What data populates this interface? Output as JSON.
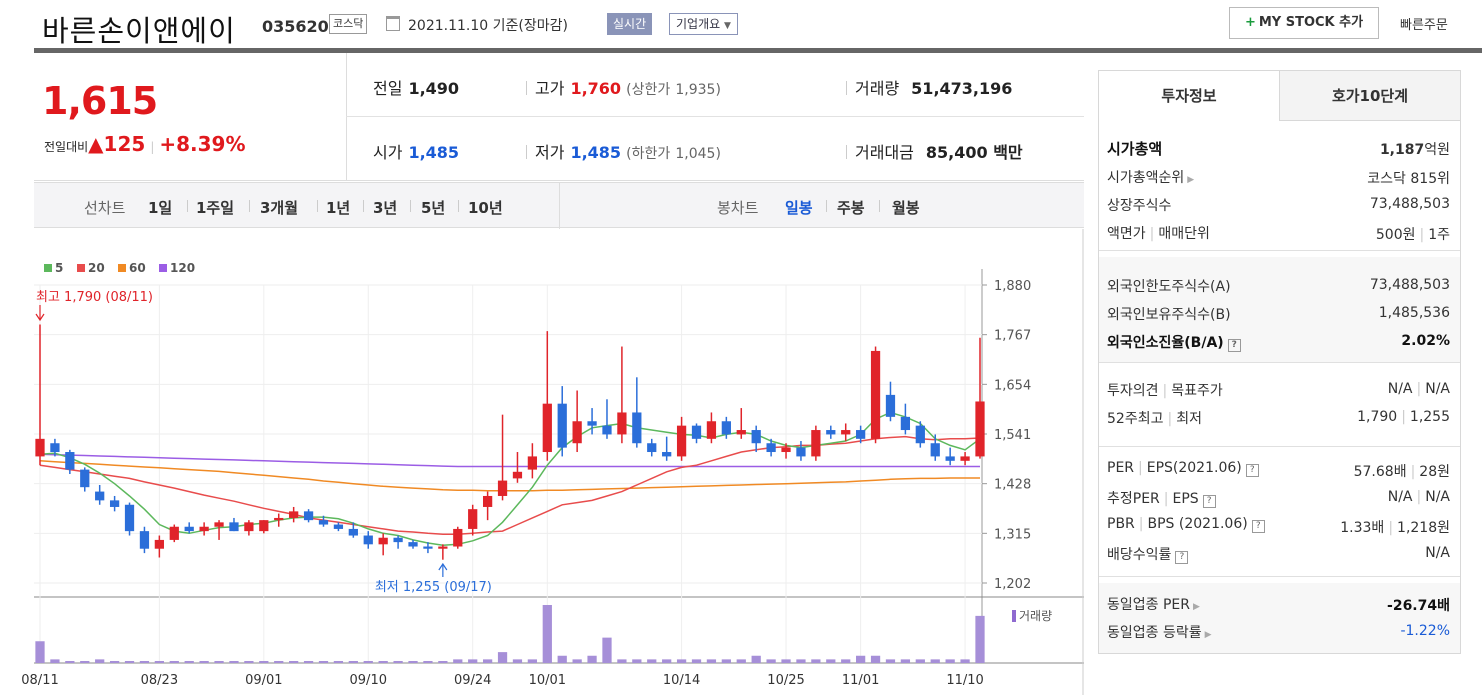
{
  "header": {
    "name": "바른손이앤에이",
    "code": "035620",
    "market": "코스닥",
    "date": "2021.11.10 기준(장마감)",
    "realtime": "실시간",
    "corp_info": "기업개요",
    "my_stock": "MY STOCK 추가",
    "quick_order": "빠른주문"
  },
  "price": {
    "current": "1,615",
    "change_label": "전일대비",
    "change_value": "▲125",
    "change_pct": "+8.39%",
    "prev_label": "전일",
    "prev": "1,490",
    "high_label": "고가",
    "high": "1,760",
    "upper_label": "(상한가",
    "upper": "1,935)",
    "volume_label": "거래량",
    "volume": "51,473,196",
    "open_label": "시가",
    "open": "1,485",
    "low_label": "저가",
    "low": "1,485",
    "lower_label": "(하한가",
    "lower": "1,045)",
    "amount_label": "거래대금",
    "amount": "85,400 백만"
  },
  "tabs": {
    "line_label": "선차트",
    "periods": [
      "1일",
      "1주일",
      "3개월",
      "1년",
      "3년",
      "5년",
      "10년"
    ],
    "candle_label": "봉차트",
    "candles": [
      "일봉",
      "주봉",
      "월봉"
    ]
  },
  "side": {
    "tab_info": "투자정보",
    "tab_hoga": "호가10단계",
    "market_cap_label": "시가총액",
    "market_cap_num": "1,187",
    "market_cap_unit": "억원",
    "rank_label": "시가총액순위",
    "rank": "코스닥 815위",
    "shares_label": "상장주식수",
    "shares": "73,488,503",
    "par_label": "액면가",
    "unit_label": "매매단위",
    "par": "500원",
    "unit": "1주",
    "foreign_limit_label": "외국인한도주식수(A)",
    "foreign_limit": "73,488,503",
    "foreign_hold_label": "외국인보유주식수(B)",
    "foreign_hold": "1,485,536",
    "foreign_ratio_label": "외국인소진율(B/A)",
    "foreign_ratio": "2.02%",
    "opinion_label": "투자의견",
    "target_label": "목표주가",
    "opinion": "N/A",
    "target": "N/A",
    "w52_high_label": "52주최고",
    "w52_low_label": "최저",
    "w52_high": "1,790",
    "w52_low": "1,255",
    "per_label": "PER",
    "eps_label": "EPS(2021.06)",
    "per": "57.68배",
    "eps": "28원",
    "eper_label": "추정PER",
    "eeps_label": "EPS",
    "eper": "N/A",
    "eeps": "N/A",
    "pbr_label": "PBR",
    "bps_label": "BPS (2021.06)",
    "pbr": "1.33배",
    "bps": "1,218원",
    "div_label": "배당수익률",
    "div": "N/A",
    "sector_per_label": "동일업종 PER",
    "sector_per": "-26.74배",
    "sector_chg_label": "동일업종 등락률",
    "sector_chg": "-1.22%"
  },
  "chart_data": {
    "type": "candlestick",
    "legend": [
      "5",
      "20",
      "60",
      "120"
    ],
    "legend_colors": [
      "#5cb85c",
      "#e84c4c",
      "#f08a24",
      "#9b5de5"
    ],
    "y_ticks": [
      "1,880",
      "1,767",
      "1,654",
      "1,541",
      "1,428",
      "1,315",
      "1,202"
    ],
    "y_min": 1202,
    "y_max": 1880,
    "x_labels": [
      "08/11",
      "08/23",
      "09/01",
      "09/10",
      "09/24",
      "10/01",
      "10/14",
      "10/25",
      "11/01",
      "11/10"
    ],
    "x_label_index": [
      0,
      8,
      15,
      22,
      29,
      34,
      43,
      50,
      55,
      62
    ],
    "high_annotation": "최고 1,790 (08/11)",
    "low_annotation": "최저 1,255 (09/17)",
    "volume_label": "거래량",
    "candles": [
      [
        1490,
        1790,
        1470,
        1530
      ],
      [
        1520,
        1530,
        1490,
        1500
      ],
      [
        1500,
        1505,
        1450,
        1460
      ],
      [
        1460,
        1465,
        1410,
        1420
      ],
      [
        1410,
        1425,
        1380,
        1390
      ],
      [
        1390,
        1400,
        1365,
        1375
      ],
      [
        1380,
        1385,
        1310,
        1320
      ],
      [
        1320,
        1330,
        1270,
        1280
      ],
      [
        1280,
        1310,
        1260,
        1300
      ],
      [
        1300,
        1335,
        1295,
        1330
      ],
      [
        1330,
        1340,
        1315,
        1320
      ],
      [
        1320,
        1340,
        1310,
        1330
      ],
      [
        1330,
        1345,
        1300,
        1340
      ],
      [
        1340,
        1350,
        1320,
        1320
      ],
      [
        1320,
        1345,
        1310,
        1340
      ],
      [
        1320,
        1345,
        1315,
        1345
      ],
      [
        1345,
        1360,
        1330,
        1350
      ],
      [
        1350,
        1375,
        1340,
        1365
      ],
      [
        1365,
        1370,
        1340,
        1345
      ],
      [
        1345,
        1355,
        1330,
        1335
      ],
      [
        1335,
        1340,
        1320,
        1325
      ],
      [
        1325,
        1340,
        1305,
        1310
      ],
      [
        1310,
        1320,
        1280,
        1290
      ],
      [
        1290,
        1315,
        1265,
        1305
      ],
      [
        1305,
        1310,
        1280,
        1295
      ],
      [
        1295,
        1300,
        1280,
        1285
      ],
      [
        1285,
        1295,
        1270,
        1280
      ],
      [
        1280,
        1290,
        1255,
        1285
      ],
      [
        1285,
        1330,
        1280,
        1325
      ],
      [
        1325,
        1380,
        1310,
        1370
      ],
      [
        1375,
        1410,
        1345,
        1400
      ],
      [
        1400,
        1585,
        1390,
        1435
      ],
      [
        1440,
        1500,
        1430,
        1455
      ],
      [
        1460,
        1520,
        1440,
        1490
      ],
      [
        1500,
        1775,
        1480,
        1610
      ],
      [
        1610,
        1650,
        1490,
        1510
      ],
      [
        1520,
        1640,
        1500,
        1570
      ],
      [
        1570,
        1600,
        1540,
        1560
      ],
      [
        1560,
        1620,
        1530,
        1540
      ],
      [
        1540,
        1740,
        1520,
        1590
      ],
      [
        1590,
        1670,
        1510,
        1520
      ],
      [
        1520,
        1530,
        1490,
        1500
      ],
      [
        1500,
        1535,
        1480,
        1490
      ],
      [
        1490,
        1580,
        1480,
        1560
      ],
      [
        1560,
        1565,
        1520,
        1530
      ],
      [
        1530,
        1590,
        1520,
        1570
      ],
      [
        1570,
        1580,
        1530,
        1540
      ],
      [
        1540,
        1600,
        1530,
        1550
      ],
      [
        1550,
        1560,
        1500,
        1520
      ],
      [
        1520,
        1530,
        1490,
        1500
      ],
      [
        1500,
        1520,
        1485,
        1510
      ],
      [
        1510,
        1525,
        1480,
        1490
      ],
      [
        1490,
        1560,
        1480,
        1550
      ],
      [
        1550,
        1560,
        1530,
        1540
      ],
      [
        1540,
        1565,
        1525,
        1550
      ],
      [
        1550,
        1560,
        1520,
        1530
      ],
      [
        1530,
        1740,
        1520,
        1730
      ],
      [
        1630,
        1660,
        1570,
        1580
      ],
      [
        1580,
        1610,
        1540,
        1550
      ],
      [
        1560,
        1570,
        1510,
        1520
      ],
      [
        1520,
        1540,
        1480,
        1490
      ],
      [
        1490,
        1510,
        1470,
        1480
      ],
      [
        1480,
        1500,
        1470,
        1490
      ],
      [
        1490,
        1760,
        1485,
        1615
      ]
    ],
    "volume": [
      6,
      1,
      0,
      0,
      1,
      0,
      0,
      0,
      0,
      0,
      0,
      0,
      0,
      0,
      0,
      0,
      0,
      0,
      0,
      0,
      0,
      0,
      0,
      0,
      0,
      0,
      0,
      0,
      1,
      1,
      1,
      3,
      1,
      1,
      16,
      2,
      1,
      2,
      7,
      1,
      1,
      1,
      1,
      1,
      1,
      1,
      1,
      1,
      2,
      1,
      1,
      1,
      1,
      1,
      1,
      2,
      2,
      1,
      1,
      1,
      1,
      1,
      1,
      13
    ],
    "ma5": [
      1495,
      1497,
      1487,
      1472,
      1452,
      1428,
      1400,
      1370,
      1335,
      1320,
      1315,
      1322,
      1328,
      1330,
      1335,
      1338,
      1345,
      1350,
      1352,
      1352,
      1348,
      1338,
      1325,
      1315,
      1310,
      1300,
      1293,
      1288,
      1290,
      1298,
      1310,
      1340,
      1380,
      1420,
      1470,
      1510,
      1535,
      1555,
      1560,
      1565,
      1555,
      1550,
      1545,
      1540,
      1538,
      1532,
      1540,
      1545,
      1540,
      1525,
      1515,
      1510,
      1515,
      1520,
      1525,
      1540,
      1575,
      1590,
      1580,
      1565,
      1530,
      1515,
      1505,
      1530
    ],
    "ma20": [
      1470,
      1465,
      1460,
      1455,
      1450,
      1445,
      1440,
      1432,
      1425,
      1418,
      1410,
      1402,
      1395,
      1388,
      1380,
      1372,
      1365,
      1358,
      1350,
      1345,
      1340,
      1335,
      1330,
      1325,
      1320,
      1318,
      1315,
      1313,
      1313,
      1315,
      1318,
      1320,
      1335,
      1350,
      1365,
      1380,
      1385,
      1390,
      1400,
      1410,
      1425,
      1440,
      1455,
      1465,
      1470,
      1480,
      1490,
      1500,
      1505,
      1510,
      1512,
      1515,
      1515,
      1518,
      1520,
      1525,
      1530,
      1533,
      1535,
      1530,
      1528,
      1530,
      1530,
      1532
    ],
    "ma60": [
      1480,
      1478,
      1476,
      1474,
      1472,
      1470,
      1468,
      1466,
      1464,
      1462,
      1460,
      1458,
      1456,
      1453,
      1450,
      1447,
      1444,
      1441,
      1438,
      1434,
      1431,
      1428,
      1425,
      1422,
      1420,
      1418,
      1416,
      1414,
      1413,
      1413,
      1412,
      1412,
      1412,
      1412,
      1413,
      1413,
      1414,
      1415,
      1416,
      1417,
      1418,
      1419,
      1420,
      1421,
      1422,
      1423,
      1424,
      1425,
      1426,
      1427,
      1428,
      1429,
      1430,
      1431,
      1432,
      1434,
      1436,
      1438,
      1439,
      1440,
      1440,
      1441,
      1441,
      1441
    ],
    "ma120": [
      1495,
      1494,
      1493,
      1492,
      1491,
      1490,
      1489,
      1488,
      1487,
      1486,
      1485,
      1484,
      1483,
      1482,
      1481,
      1480,
      1479,
      1478,
      1477,
      1476,
      1475,
      1474,
      1473,
      1472,
      1471,
      1470,
      1469,
      1468,
      1467,
      1467,
      1467,
      1467,
      1467,
      1467,
      1467,
      1467,
      1467,
      1467,
      1467,
      1467,
      1467,
      1467,
      1467,
      1467,
      1467,
      1467,
      1467,
      1467,
      1467,
      1467,
      1467,
      1467,
      1467,
      1467,
      1467,
      1467,
      1467,
      1467,
      1467,
      1467,
      1467,
      1467,
      1467,
      1467
    ]
  }
}
